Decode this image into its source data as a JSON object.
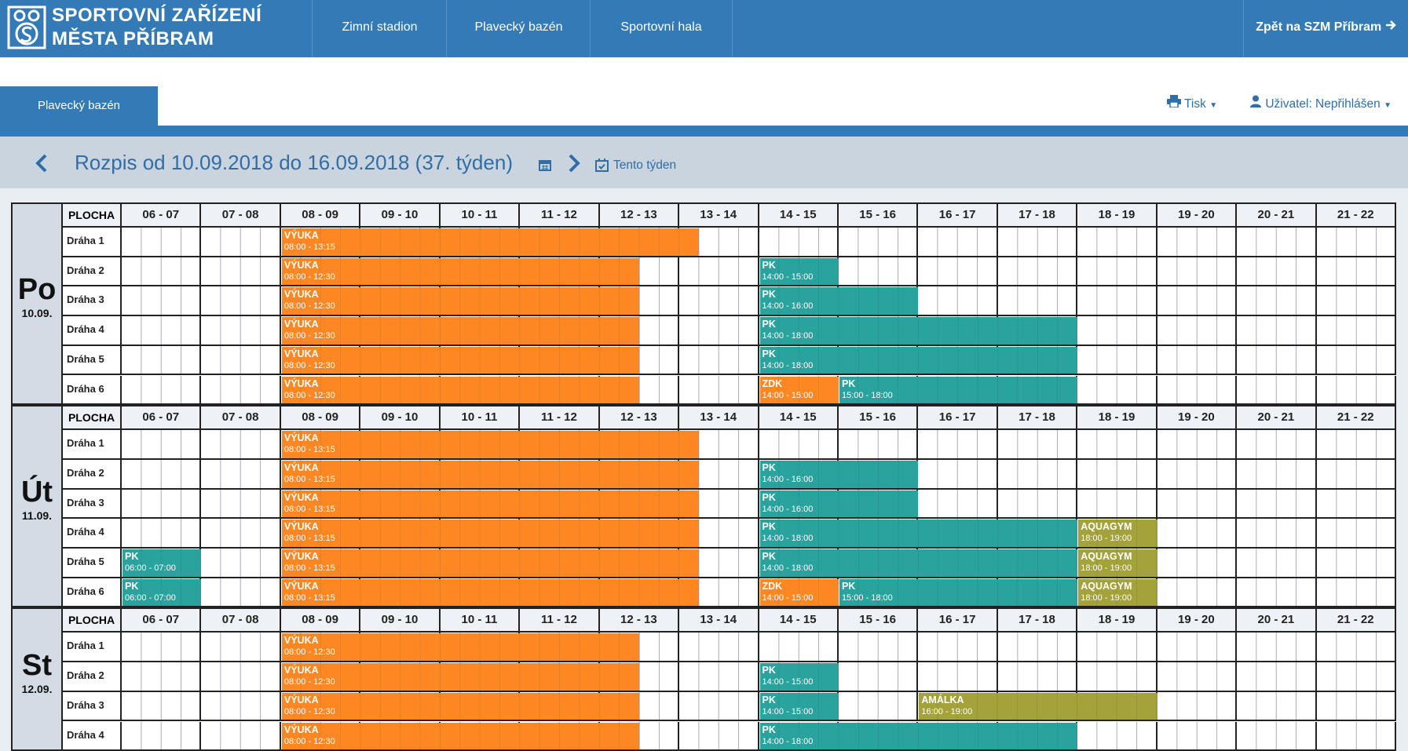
{
  "header": {
    "logo_line1": "SPORTOVNÍ ZAŘÍZENÍ",
    "logo_line2": "MĚSTA PŘÍBRAM",
    "nav": [
      "Zimní stadion",
      "Plavecký bazén",
      "Sportovní hala"
    ],
    "back": "Zpět na SZM Příbram"
  },
  "toolbar": {
    "active_tab": "Plavecký bazén",
    "print": "Tisk",
    "user": "Uživatel: Nepřihlášen"
  },
  "week": {
    "title": "Rozpis od 10.09.2018 do 16.09.2018 (37. týden)",
    "current": "Tento týden"
  },
  "schedule": {
    "lane_header": "PLOCHA",
    "hours": [
      "06 - 07",
      "07 - 08",
      "08 - 09",
      "09 - 10",
      "10 - 11",
      "11 - 12",
      "12 - 13",
      "13 - 14",
      "14 - 15",
      "15 - 16",
      "16 - 17",
      "17 - 18",
      "18 - 19",
      "19 - 20",
      "20 - 21",
      "21 - 22"
    ],
    "days": [
      {
        "name": "Po",
        "date": "10.09.",
        "lanes": [
          {
            "name": "Dráha 1",
            "events": [
              {
                "title": "VÝUKA",
                "time": "08:00 - 13:15",
                "color": "#fd8823"
              }
            ]
          },
          {
            "name": "Dráha 2",
            "events": [
              {
                "title": "VÝUKA",
                "time": "08:00 - 12:30",
                "color": "#fd8823"
              },
              {
                "title": "PK",
                "time": "14:00 - 15:00",
                "color": "#2aa39f"
              }
            ]
          },
          {
            "name": "Dráha 3",
            "events": [
              {
                "title": "VÝUKA",
                "time": "08:00 - 12:30",
                "color": "#fd8823"
              },
              {
                "title": "PK",
                "time": "14:00 - 16:00",
                "color": "#2aa39f"
              }
            ]
          },
          {
            "name": "Dráha 4",
            "events": [
              {
                "title": "VÝUKA",
                "time": "08:00 - 12:30",
                "color": "#fd8823"
              },
              {
                "title": "PK",
                "time": "14:00 - 18:00",
                "color": "#2aa39f"
              }
            ]
          },
          {
            "name": "Dráha 5",
            "events": [
              {
                "title": "VÝUKA",
                "time": "08:00 - 12:30",
                "color": "#fd8823"
              },
              {
                "title": "PK",
                "time": "14:00 - 18:00",
                "color": "#2aa39f"
              }
            ]
          },
          {
            "name": "Dráha 6",
            "events": [
              {
                "title": "VÝUKA",
                "time": "08:00 - 12:30",
                "color": "#fd8823"
              },
              {
                "title": "ZDK",
                "time": "14:00 - 15:00",
                "color": "#fd8823"
              },
              {
                "title": "PK",
                "time": "15:00 - 18:00",
                "color": "#2aa39f"
              }
            ]
          }
        ]
      },
      {
        "name": "Út",
        "date": "11.09.",
        "lanes": [
          {
            "name": "Dráha 1",
            "events": [
              {
                "title": "VÝUKA",
                "time": "08:00 - 13:15",
                "color": "#fd8823"
              }
            ]
          },
          {
            "name": "Dráha 2",
            "events": [
              {
                "title": "VÝUKA",
                "time": "08:00 - 13:15",
                "color": "#fd8823"
              },
              {
                "title": "PK",
                "time": "14:00 - 16:00",
                "color": "#2aa39f"
              }
            ]
          },
          {
            "name": "Dráha 3",
            "events": [
              {
                "title": "VÝUKA",
                "time": "08:00 - 13:15",
                "color": "#fd8823"
              },
              {
                "title": "PK",
                "time": "14:00 - 16:00",
                "color": "#2aa39f"
              }
            ]
          },
          {
            "name": "Dráha 4",
            "events": [
              {
                "title": "VÝUKA",
                "time": "08:00 - 13:15",
                "color": "#fd8823"
              },
              {
                "title": "PK",
                "time": "14:00 - 18:00",
                "color": "#2aa39f"
              },
              {
                "title": "AQUAGYM",
                "time": "18:00 - 19:00",
                "color": "#a4a23a"
              }
            ]
          },
          {
            "name": "Dráha 5",
            "events": [
              {
                "title": "PK",
                "time": "06:00 - 07:00",
                "color": "#2aa39f"
              },
              {
                "title": "VÝUKA",
                "time": "08:00 - 13:15",
                "color": "#fd8823"
              },
              {
                "title": "PK",
                "time": "14:00 - 18:00",
                "color": "#2aa39f"
              },
              {
                "title": "AQUAGYM",
                "time": "18:00 - 19:00",
                "color": "#a4a23a"
              }
            ]
          },
          {
            "name": "Dráha 6",
            "events": [
              {
                "title": "PK",
                "time": "06:00 - 07:00",
                "color": "#2aa39f"
              },
              {
                "title": "VÝUKA",
                "time": "08:00 - 13:15",
                "color": "#fd8823"
              },
              {
                "title": "ZDK",
                "time": "14:00 - 15:00",
                "color": "#fd8823"
              },
              {
                "title": "PK",
                "time": "15:00 - 18:00",
                "color": "#2aa39f"
              },
              {
                "title": "AQUAGYM",
                "time": "18:00 - 19:00",
                "color": "#a4a23a"
              }
            ]
          }
        ]
      },
      {
        "name": "St",
        "date": "12.09.",
        "lanes": [
          {
            "name": "Dráha 1",
            "events": [
              {
                "title": "VÝUKA",
                "time": "08:00 - 12:30",
                "color": "#fd8823"
              }
            ]
          },
          {
            "name": "Dráha 2",
            "events": [
              {
                "title": "VÝUKA",
                "time": "08:00 - 12:30",
                "color": "#fd8823"
              },
              {
                "title": "PK",
                "time": "14:00 - 15:00",
                "color": "#2aa39f"
              }
            ]
          },
          {
            "name": "Dráha 3",
            "events": [
              {
                "title": "VÝUKA",
                "time": "08:00 - 12:30",
                "color": "#fd8823"
              },
              {
                "title": "PK",
                "time": "14:00 - 15:00",
                "color": "#2aa39f"
              },
              {
                "title": "AMÁLKA",
                "time": "16:00 - 19:00",
                "color": "#a4a23a"
              }
            ]
          },
          {
            "name": "Dráha 4",
            "events": [
              {
                "title": "VÝUKA",
                "time": "08:00 - 12:30",
                "color": "#fd8823"
              },
              {
                "title": "PK",
                "time": "14:00 - 18:00",
                "color": "#2aa39f"
              }
            ]
          }
        ]
      }
    ]
  }
}
